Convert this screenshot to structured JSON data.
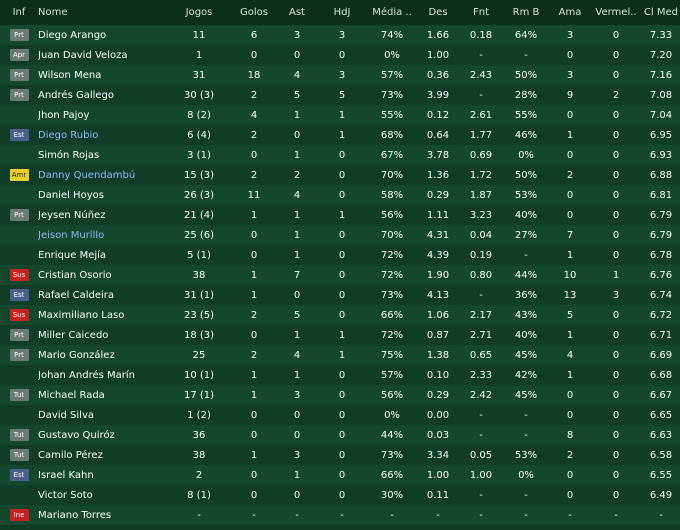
{
  "columns": [
    "Inf",
    "Nome",
    "Jogos",
    "Golos",
    "Ast",
    "HdJ",
    "Média ..",
    "Des",
    "Fnt",
    "Rm B",
    "Ama",
    "Vermel..",
    "Cl Med"
  ],
  "rows": [
    {
      "inf": "Prt",
      "name": "Diego Arango",
      "link": false,
      "jogos": "11",
      "golos": "6",
      "ast": "3",
      "hdj": "3",
      "media": "74%",
      "des": "1.66",
      "fnt": "0.18",
      "rmb": "64%",
      "ama": "3",
      "verm": "0",
      "clmed": "7.33"
    },
    {
      "inf": "Apr",
      "name": "Juan David Veloza",
      "link": false,
      "jogos": "1",
      "golos": "0",
      "ast": "0",
      "hdj": "0",
      "media": "0%",
      "des": "1.00",
      "fnt": "-",
      "rmb": "-",
      "ama": "0",
      "verm": "0",
      "clmed": "7.20"
    },
    {
      "inf": "Prt",
      "name": "Wilson Mena",
      "link": false,
      "jogos": "31",
      "golos": "18",
      "ast": "4",
      "hdj": "3",
      "media": "57%",
      "des": "0.36",
      "fnt": "2.43",
      "rmb": "50%",
      "ama": "3",
      "verm": "0",
      "clmed": "7.16"
    },
    {
      "inf": "Prt",
      "name": "Andrés Gallego",
      "link": false,
      "jogos": "30 (3)",
      "golos": "2",
      "ast": "5",
      "hdj": "5",
      "media": "73%",
      "des": "3.99",
      "fnt": "-",
      "rmb": "28%",
      "ama": "9",
      "verm": "2",
      "clmed": "7.08"
    },
    {
      "inf": "",
      "name": "Jhon Pajoy",
      "link": false,
      "jogos": "8 (2)",
      "golos": "4",
      "ast": "1",
      "hdj": "1",
      "media": "55%",
      "des": "0.12",
      "fnt": "2.61",
      "rmb": "55%",
      "ama": "0",
      "verm": "0",
      "clmed": "7.04"
    },
    {
      "inf": "Est",
      "name": "Diego Rubio",
      "link": true,
      "jogos": "6 (4)",
      "golos": "2",
      "ast": "0",
      "hdj": "1",
      "media": "68%",
      "des": "0.64",
      "fnt": "1.77",
      "rmb": "46%",
      "ama": "1",
      "verm": "0",
      "clmed": "6.95"
    },
    {
      "inf": "",
      "name": "Simón Rojas",
      "link": false,
      "jogos": "3 (1)",
      "golos": "0",
      "ast": "1",
      "hdj": "0",
      "media": "67%",
      "des": "3.78",
      "fnt": "0.69",
      "rmb": "0%",
      "ama": "0",
      "verm": "0",
      "clmed": "6.93"
    },
    {
      "inf": "Amr",
      "name": "Danny Quendambú",
      "link": true,
      "jogos": "15 (3)",
      "golos": "2",
      "ast": "2",
      "hdj": "0",
      "media": "70%",
      "des": "1.36",
      "fnt": "1.72",
      "rmb": "50%",
      "ama": "2",
      "verm": "0",
      "clmed": "6.88"
    },
    {
      "inf": "",
      "name": "Daniel Hoyos",
      "link": false,
      "jogos": "26 (3)",
      "golos": "11",
      "ast": "4",
      "hdj": "0",
      "media": "58%",
      "des": "0.29",
      "fnt": "1.87",
      "rmb": "53%",
      "ama": "0",
      "verm": "0",
      "clmed": "6.81"
    },
    {
      "inf": "Prt",
      "name": "Jeysen Núñez",
      "link": false,
      "jogos": "21 (4)",
      "golos": "1",
      "ast": "1",
      "hdj": "1",
      "media": "56%",
      "des": "1.11",
      "fnt": "3.23",
      "rmb": "40%",
      "ama": "0",
      "verm": "0",
      "clmed": "6.79"
    },
    {
      "inf": "",
      "name": "Jeison Murillo",
      "link": true,
      "jogos": "25 (6)",
      "golos": "0",
      "ast": "1",
      "hdj": "0",
      "media": "70%",
      "des": "4.31",
      "fnt": "0.04",
      "rmb": "27%",
      "ama": "7",
      "verm": "0",
      "clmed": "6.79"
    },
    {
      "inf": "",
      "name": "Enrique Mejía",
      "link": false,
      "jogos": "5 (1)",
      "golos": "0",
      "ast": "1",
      "hdj": "0",
      "media": "72%",
      "des": "4.39",
      "fnt": "0.19",
      "rmb": "-",
      "ama": "1",
      "verm": "0",
      "clmed": "6.78"
    },
    {
      "inf": "Sus",
      "name": "Cristian Osorio",
      "link": false,
      "jogos": "38",
      "golos": "1",
      "ast": "7",
      "hdj": "0",
      "media": "72%",
      "des": "1.90",
      "fnt": "0.80",
      "rmb": "44%",
      "ama": "10",
      "verm": "1",
      "clmed": "6.76"
    },
    {
      "inf": "Est",
      "name": "Rafael Caldeira",
      "link": false,
      "jogos": "31 (1)",
      "golos": "1",
      "ast": "0",
      "hdj": "0",
      "media": "73%",
      "des": "4.13",
      "fnt": "-",
      "rmb": "36%",
      "ama": "13",
      "verm": "3",
      "clmed": "6.74"
    },
    {
      "inf": "Sus",
      "name": "Maximiliano Laso",
      "link": false,
      "jogos": "23 (5)",
      "golos": "2",
      "ast": "5",
      "hdj": "0",
      "media": "66%",
      "des": "1.06",
      "fnt": "2.17",
      "rmb": "43%",
      "ama": "5",
      "verm": "0",
      "clmed": "6.72"
    },
    {
      "inf": "Prt",
      "name": "Miller Caicedo",
      "link": false,
      "jogos": "18 (3)",
      "golos": "0",
      "ast": "1",
      "hdj": "1",
      "media": "72%",
      "des": "0.87",
      "fnt": "2.71",
      "rmb": "40%",
      "ama": "1",
      "verm": "0",
      "clmed": "6.71"
    },
    {
      "inf": "Prt",
      "name": "Mario González",
      "link": false,
      "jogos": "25",
      "golos": "2",
      "ast": "4",
      "hdj": "1",
      "media": "75%",
      "des": "1.38",
      "fnt": "0.65",
      "rmb": "45%",
      "ama": "4",
      "verm": "0",
      "clmed": "6.69"
    },
    {
      "inf": "",
      "name": "Johan Andrés Marín",
      "link": false,
      "jogos": "10 (1)",
      "golos": "1",
      "ast": "1",
      "hdj": "0",
      "media": "57%",
      "des": "0.10",
      "fnt": "2.33",
      "rmb": "42%",
      "ama": "1",
      "verm": "0",
      "clmed": "6.68"
    },
    {
      "inf": "Tut",
      "name": "Michael Rada",
      "link": false,
      "jogos": "17 (1)",
      "golos": "1",
      "ast": "3",
      "hdj": "0",
      "media": "56%",
      "des": "0.29",
      "fnt": "2.42",
      "rmb": "45%",
      "ama": "0",
      "verm": "0",
      "clmed": "6.67"
    },
    {
      "inf": "",
      "name": "David Silva",
      "link": false,
      "jogos": "1 (2)",
      "golos": "0",
      "ast": "0",
      "hdj": "0",
      "media": "0%",
      "des": "0.00",
      "fnt": "-",
      "rmb": "-",
      "ama": "0",
      "verm": "0",
      "clmed": "6.65"
    },
    {
      "inf": "Tut",
      "name": "Gustavo Quiróz",
      "link": false,
      "jogos": "36",
      "golos": "0",
      "ast": "0",
      "hdj": "0",
      "media": "44%",
      "des": "0.03",
      "fnt": "-",
      "rmb": "-",
      "ama": "8",
      "verm": "0",
      "clmed": "6.63"
    },
    {
      "inf": "Tut",
      "name": "Camilo Pérez",
      "link": false,
      "jogos": "38",
      "golos": "1",
      "ast": "3",
      "hdj": "0",
      "media": "73%",
      "des": "3.34",
      "fnt": "0.05",
      "rmb": "53%",
      "ama": "2",
      "verm": "0",
      "clmed": "6.58"
    },
    {
      "inf": "Est",
      "name": "Israel Kahn",
      "link": false,
      "jogos": "2",
      "golos": "0",
      "ast": "1",
      "hdj": "0",
      "media": "66%",
      "des": "1.00",
      "fnt": "1.00",
      "rmb": "0%",
      "ama": "0",
      "verm": "0",
      "clmed": "6.55"
    },
    {
      "inf": "",
      "name": "Victor Soto",
      "link": false,
      "jogos": "8 (1)",
      "golos": "0",
      "ast": "0",
      "hdj": "0",
      "media": "30%",
      "des": "0.11",
      "fnt": "-",
      "rmb": "-",
      "ama": "0",
      "verm": "0",
      "clmed": "6.49"
    },
    {
      "inf": "Ine",
      "name": "Mariano Torres",
      "link": false,
      "jogos": "-",
      "golos": "-",
      "ast": "-",
      "hdj": "-",
      "media": "-",
      "des": "-",
      "fnt": "-",
      "rmb": "-",
      "ama": "-",
      "verm": "-",
      "clmed": "-"
    }
  ]
}
